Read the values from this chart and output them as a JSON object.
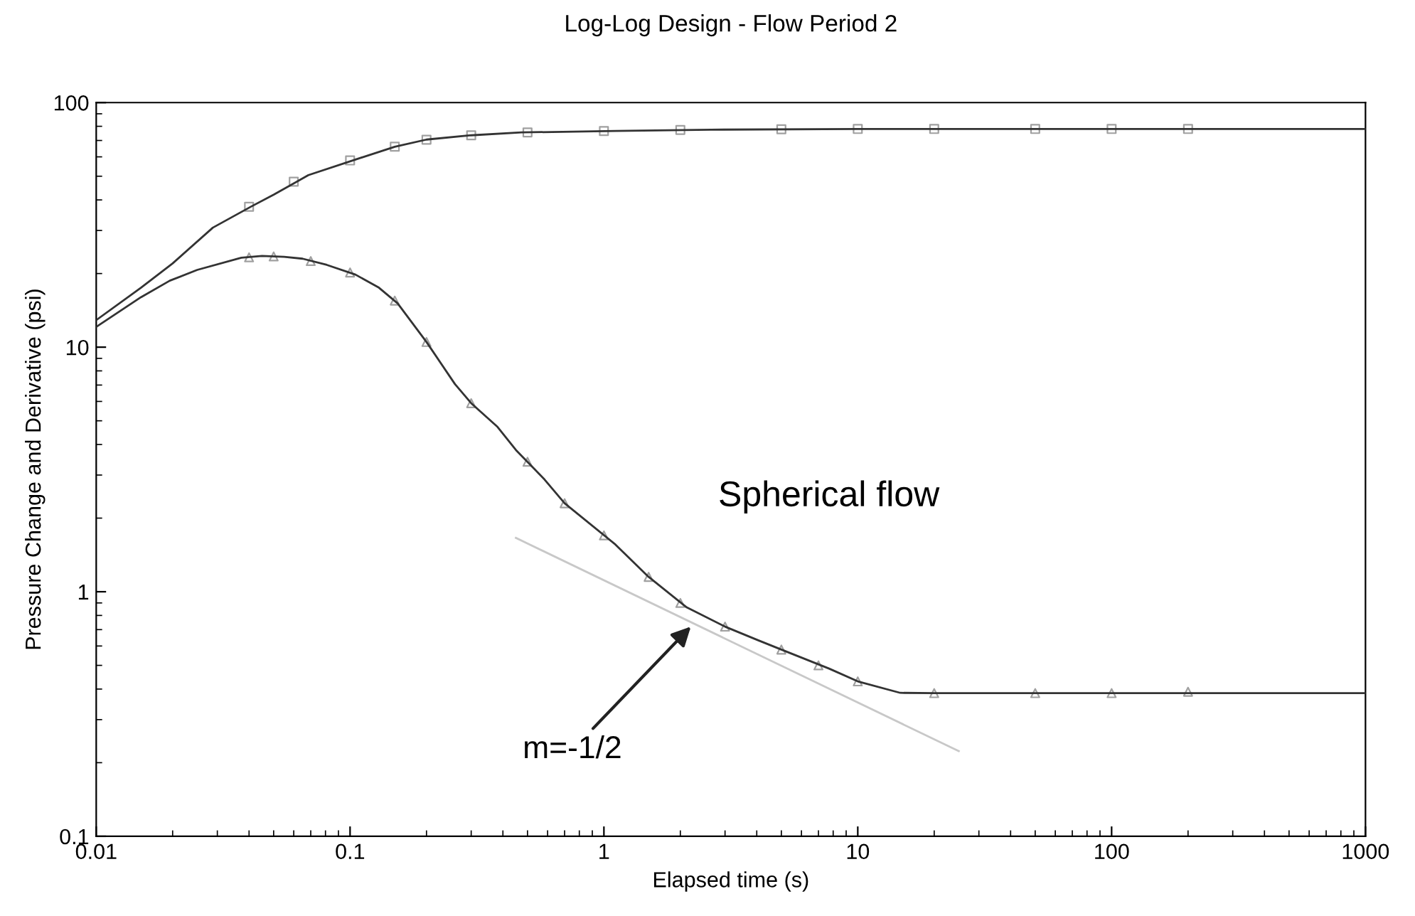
{
  "chart_data": {
    "type": "line",
    "title": "Log-Log Design - Flow Period 2",
    "xlabel": "Elapsed time (s)",
    "ylabel": "Pressure Change and Derivative (psi)",
    "log": "xy",
    "xlim": [
      0.01,
      1000
    ],
    "ylim": [
      0.1,
      100
    ],
    "xticks": [
      0.01,
      0.1,
      1,
      10,
      100,
      1000
    ],
    "yticks": [
      0.1,
      1,
      10,
      100
    ],
    "grid": false,
    "legend": false,
    "series": [
      {
        "type": "scatter",
        "marker": "square",
        "color": "#a0a0a0",
        "x": [
          0.04,
          0.06,
          0.1,
          0.15,
          0.2,
          0.3,
          0.5,
          1,
          2,
          5,
          10,
          20,
          50,
          100,
          200
        ],
        "values": [
          37.5,
          47.5,
          58,
          66,
          70.5,
          73.5,
          75.5,
          76.5,
          77.3,
          77.8,
          78,
          78,
          78,
          78,
          78
        ]
      },
      {
        "type": "scatter",
        "marker": "triangle",
        "color": "#a0a0a0",
        "x": [
          0.04,
          0.05,
          0.07,
          0.1,
          0.15,
          0.2,
          0.3,
          0.5,
          0.7,
          1,
          1.5,
          2,
          3,
          5,
          7,
          10,
          20,
          50,
          100,
          200
        ],
        "values": [
          23.3,
          23.5,
          22.5,
          20.2,
          15.5,
          10.5,
          5.9,
          3.4,
          2.3,
          1.7,
          1.15,
          0.9,
          0.72,
          0.58,
          0.5,
          0.43,
          0.385,
          0.385,
          0.385,
          0.39
        ]
      },
      {
        "color": "#333333",
        "line_style": "solid",
        "x": [
          0.01,
          0.015,
          0.02,
          0.0288,
          0.0408,
          0.05,
          0.0685,
          0.105,
          0.15,
          0.2,
          0.3,
          0.474,
          1.11,
          2.64,
          10,
          100,
          1000
        ],
        "values": [
          12.9,
          17.5,
          22,
          30.8,
          37.6,
          42,
          50.5,
          58.5,
          66,
          70.6,
          73.5,
          75.5,
          76.6,
          77.5,
          78,
          78,
          78
        ]
      },
      {
        "color": "#333333",
        "line_style": "solid",
        "x": [
          0.01,
          0.015,
          0.0195,
          0.025,
          0.0373,
          0.045,
          0.055,
          0.065,
          0.081,
          0.105,
          0.13,
          0.154,
          0.2,
          0.259,
          0.3,
          0.381,
          0.45,
          0.583,
          0.7,
          1.11,
          1.5,
          2.12,
          3,
          4.04,
          5,
          7.71,
          10,
          14.7,
          20,
          100,
          1000
        ],
        "values": [
          12.1,
          16,
          18.7,
          20.7,
          23.2,
          23.6,
          23.4,
          23,
          21.7,
          19.8,
          17.5,
          15.1,
          10.5,
          7.06,
          5.9,
          4.72,
          3.8,
          2.88,
          2.3,
          1.56,
          1.15,
          0.863,
          0.72,
          0.634,
          0.58,
          0.485,
          0.43,
          0.386,
          0.385,
          0.385,
          0.385
        ]
      },
      {
        "color": "#c8c8c8",
        "line_style": "solid",
        "x": [
          0.45,
          25
        ],
        "values": [
          1.66,
          0.223
        ]
      }
    ],
    "annotations": [
      "Spherical flow",
      {
        "text": "m=-1/2",
        "x": 2.2,
        "y": 0.72
      }
    ]
  }
}
